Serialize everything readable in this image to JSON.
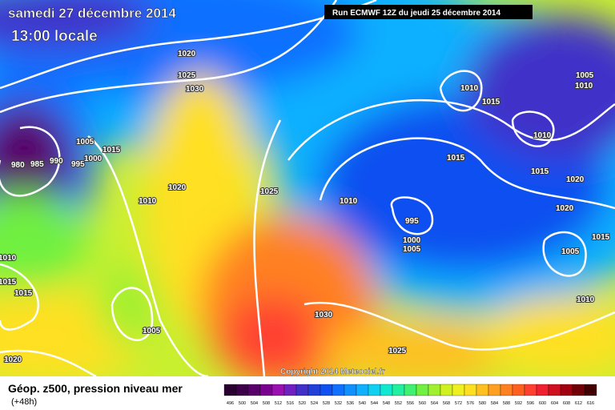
{
  "header": {
    "date": "samedi 27 décembre 2014",
    "time": "13:00 locale",
    "run": "Run ECMWF 12Z du jeudi 25 décembre 2014"
  },
  "copyright": "Copyright 2014 Meteociel.fr",
  "legend": {
    "title": "Géop. z500, pression niveau mer",
    "lead": "(+48h)",
    "levels": [
      496,
      500,
      504,
      508,
      512,
      516,
      520,
      524,
      528,
      532,
      536,
      540,
      544,
      548,
      552,
      556,
      560,
      564,
      568,
      572,
      576,
      580,
      584,
      588,
      592,
      596,
      600,
      604,
      608,
      612,
      616
    ],
    "colors": [
      "#2a0030",
      "#3c0048",
      "#58006a",
      "#7a0090",
      "#9a10b0",
      "#7020c0",
      "#4030c8",
      "#2040d8",
      "#1050f0",
      "#1070ff",
      "#1090ff",
      "#10b0ff",
      "#10d0f0",
      "#10e8d0",
      "#20f0a0",
      "#40f070",
      "#70f040",
      "#a0f030",
      "#d0f020",
      "#f0f020",
      "#ffe020",
      "#ffc020",
      "#ffa020",
      "#ff8020",
      "#ff6020",
      "#ff4030",
      "#f02030",
      "#d01020",
      "#a00010",
      "#700008",
      "#400000"
    ]
  },
  "isobar_labels": [
    "1020",
    "1025",
    "1030",
    "980",
    "985",
    "990",
    "995",
    "1000",
    "1005",
    "1015",
    "1020",
    "1010",
    "1025",
    "1010",
    "995",
    "1000",
    "1005",
    "1015",
    "1010",
    "1015",
    "1005",
    "1010",
    "1010",
    "1015",
    "1020",
    "1020",
    "1015",
    "1005",
    "1010",
    "1010",
    "1015",
    "1015",
    "1005",
    "1030",
    "1025",
    "1020"
  ]
}
